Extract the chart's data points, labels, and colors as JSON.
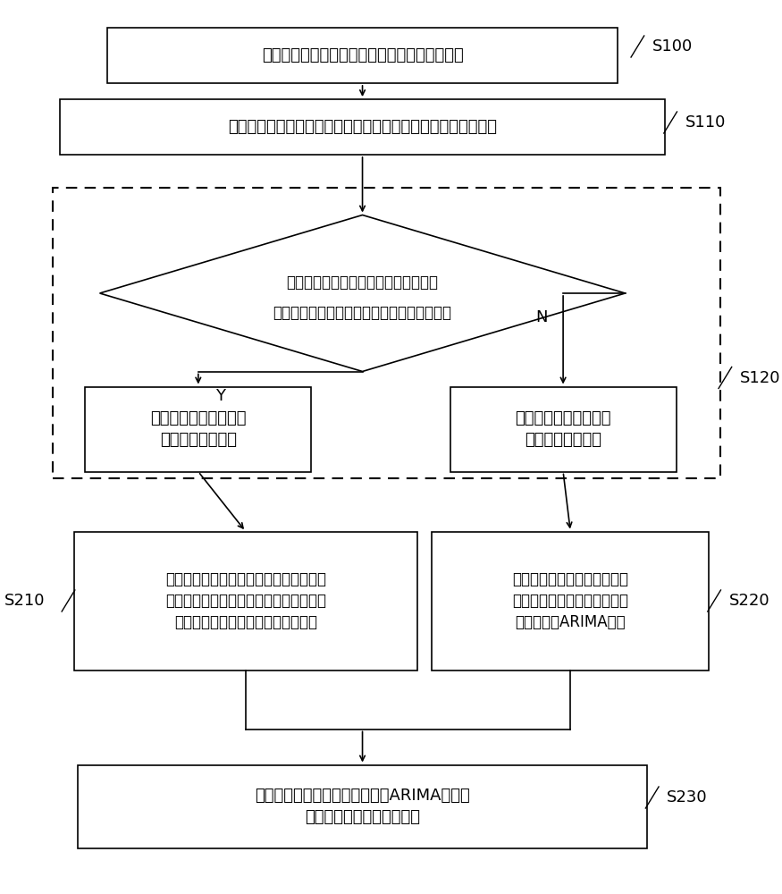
{
  "bg_color": "#ffffff",
  "font_size": 13,
  "label_font_size": 13,
  "s100_label": "S100",
  "s110_label": "S110",
  "s120_label": "S120",
  "s210_label": "S210",
  "s220_label": "S220",
  "s230_label": "S230",
  "box1_text": "获取用户消费数据和影响客流量的特征属性信息",
  "box2_text": "根据所述用户消费数据，统计各个消费者在各个商家的消费次数",
  "diamond_line1": "判断当前消费者在当前商家的消费次数",
  "diamond_line2": "在预设检测时间周期内是否达到预设消费次数",
  "diamond_n": "N",
  "diamond_y": "Y",
  "box3_line1": "判定当前消费者是当前",
  "box3_line2": "商家的固定消费者",
  "box4_line1": "判定当前消费者是当前",
  "box4_line2": "商家的随机消费者",
  "box5_line1": "根据所述特征属性信息和各个商家对应的",
  "box5_line2": "固定消费者的用户消费数据，构建各个商",
  "box5_line3": "家对应的各个固定用户的决策树模型",
  "box6_line1": "根据各个商家对应的随机消费",
  "box6_line2": "者的用户消费数据，构建各个",
  "box6_line3": "商家的目标ARIMA模型",
  "box7_line1": "通过所述决策树模型和所述目标ARIMA模型，",
  "box7_line2": "预测各个商家未来的客流量"
}
